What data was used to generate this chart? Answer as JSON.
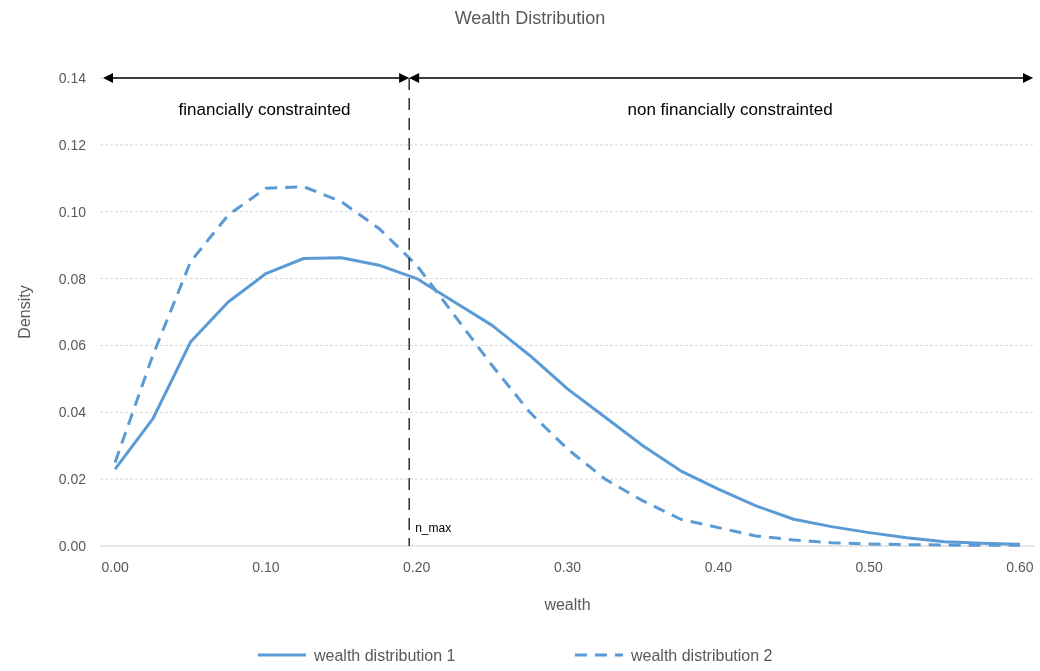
{
  "chart_data": {
    "type": "line",
    "title": "Wealth Distribution",
    "xlabel": "wealth",
    "ylabel": "Density",
    "x": [
      0,
      0.025,
      0.05,
      0.075,
      0.1,
      0.125,
      0.15,
      0.175,
      0.2,
      0.225,
      0.25,
      0.275,
      0.3,
      0.325,
      0.35,
      0.375,
      0.4,
      0.425,
      0.45,
      0.475,
      0.5,
      0.525,
      0.55,
      0.575,
      0.6
    ],
    "series": [
      {
        "name": "wealth distribution 1",
        "color": "#5b9bd5",
        "line_style": "solid",
        "values": [
          0.023,
          0.038,
          0.061,
          0.073,
          0.0815,
          0.086,
          0.0862,
          0.084,
          0.08,
          0.073,
          0.066,
          0.057,
          0.047,
          0.0385,
          0.03,
          0.0225,
          0.017,
          0.012,
          0.008,
          0.0058,
          0.004,
          0.0025,
          0.0013,
          0.0008,
          0.0005
        ]
      },
      {
        "name": "wealth distribution 2",
        "color": "#5b9bd5",
        "line_style": "dashed",
        "values": [
          0.025,
          0.057,
          0.085,
          0.099,
          0.107,
          0.1075,
          0.103,
          0.095,
          0.084,
          0.069,
          0.054,
          0.04,
          0.029,
          0.02,
          0.0135,
          0.008,
          0.0055,
          0.003,
          0.0018,
          0.001,
          0.0006,
          0.0004,
          0.0003,
          0.0002,
          0.0002
        ]
      }
    ],
    "xlim": [
      -0.01,
      0.61
    ],
    "xticks": [
      {
        "value": 0,
        "label": "0.00"
      },
      {
        "value": 0.1,
        "label": "0.10"
      },
      {
        "value": 0.2,
        "label": "0.20"
      },
      {
        "value": 0.3,
        "label": "0.30"
      },
      {
        "value": 0.4,
        "label": "0.40"
      },
      {
        "value": 0.5,
        "label": "0.50"
      },
      {
        "value": 0.6,
        "label": "0.60"
      }
    ],
    "ylim": [
      0,
      0.14
    ],
    "yticks": [
      {
        "value": 0,
        "label": "0.00"
      },
      {
        "value": 0.02,
        "label": "0.02"
      },
      {
        "value": 0.04,
        "label": "0.04"
      },
      {
        "value": 0.06,
        "label": "0.06"
      },
      {
        "value": 0.08,
        "label": "0.08"
      },
      {
        "value": 0.1,
        "label": "0.10"
      },
      {
        "value": 0.12,
        "label": "0.12"
      },
      {
        "value": 0.14,
        "label": "0.14"
      }
    ],
    "grid": "y",
    "legend": "bottom",
    "ref_lines": [
      {
        "axis": "x",
        "value": 0.195,
        "label": "n_max",
        "color": "#000000",
        "line_style": "dashed"
      }
    ],
    "annotations": [
      "financially constrainted",
      "non financially constrainted"
    ]
  }
}
